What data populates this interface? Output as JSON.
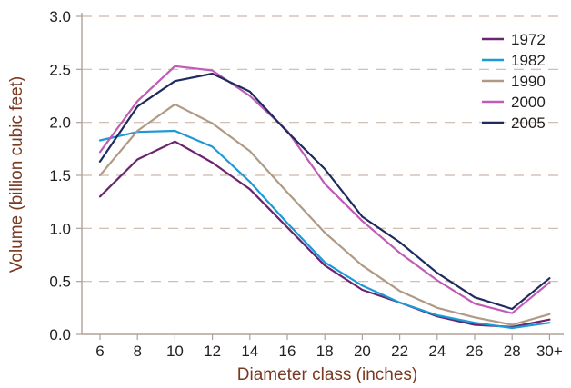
{
  "chart_data": {
    "type": "line",
    "title": "",
    "xlabel": "Diameter class (inches)",
    "ylabel": "Volume (billion cubic feet)",
    "categories": [
      "6",
      "8",
      "10",
      "12",
      "14",
      "16",
      "18",
      "20",
      "22",
      "24",
      "26",
      "28",
      "30+"
    ],
    "ylim": [
      0,
      3.0
    ],
    "yticks": [
      "0.0",
      "0.5",
      "1.0",
      "1.5",
      "2.0",
      "2.5",
      "3.0"
    ],
    "grid": "horizontal dashed",
    "legend": "top-right",
    "series": [
      {
        "name": "1972",
        "color": "#6b2470",
        "values": [
          1.3,
          1.65,
          1.82,
          1.62,
          1.37,
          1.01,
          0.65,
          0.42,
          0.3,
          0.17,
          0.09,
          0.07,
          0.14
        ]
      },
      {
        "name": "1982",
        "color": "#1a9ad6",
        "values": [
          1.83,
          1.91,
          1.92,
          1.77,
          1.44,
          1.05,
          0.68,
          0.46,
          0.3,
          0.18,
          0.11,
          0.06,
          0.11
        ]
      },
      {
        "name": "1990",
        "color": "#b09a85",
        "values": [
          1.5,
          1.92,
          2.17,
          1.99,
          1.73,
          1.34,
          0.96,
          0.65,
          0.41,
          0.25,
          0.16,
          0.09,
          0.19
        ]
      },
      {
        "name": "2000",
        "color": "#c15bb5",
        "values": [
          1.72,
          2.2,
          2.53,
          2.49,
          2.25,
          1.92,
          1.42,
          1.07,
          0.77,
          0.51,
          0.29,
          0.2,
          0.49
        ]
      },
      {
        "name": "2005",
        "color": "#1f2a5e",
        "values": [
          1.63,
          2.15,
          2.39,
          2.46,
          2.29,
          1.91,
          1.56,
          1.11,
          0.87,
          0.58,
          0.35,
          0.24,
          0.53
        ]
      }
    ],
    "axis_color": "#b0a096",
    "grid_color": "#c9b7ab",
    "label_color": "#7a3a22"
  }
}
